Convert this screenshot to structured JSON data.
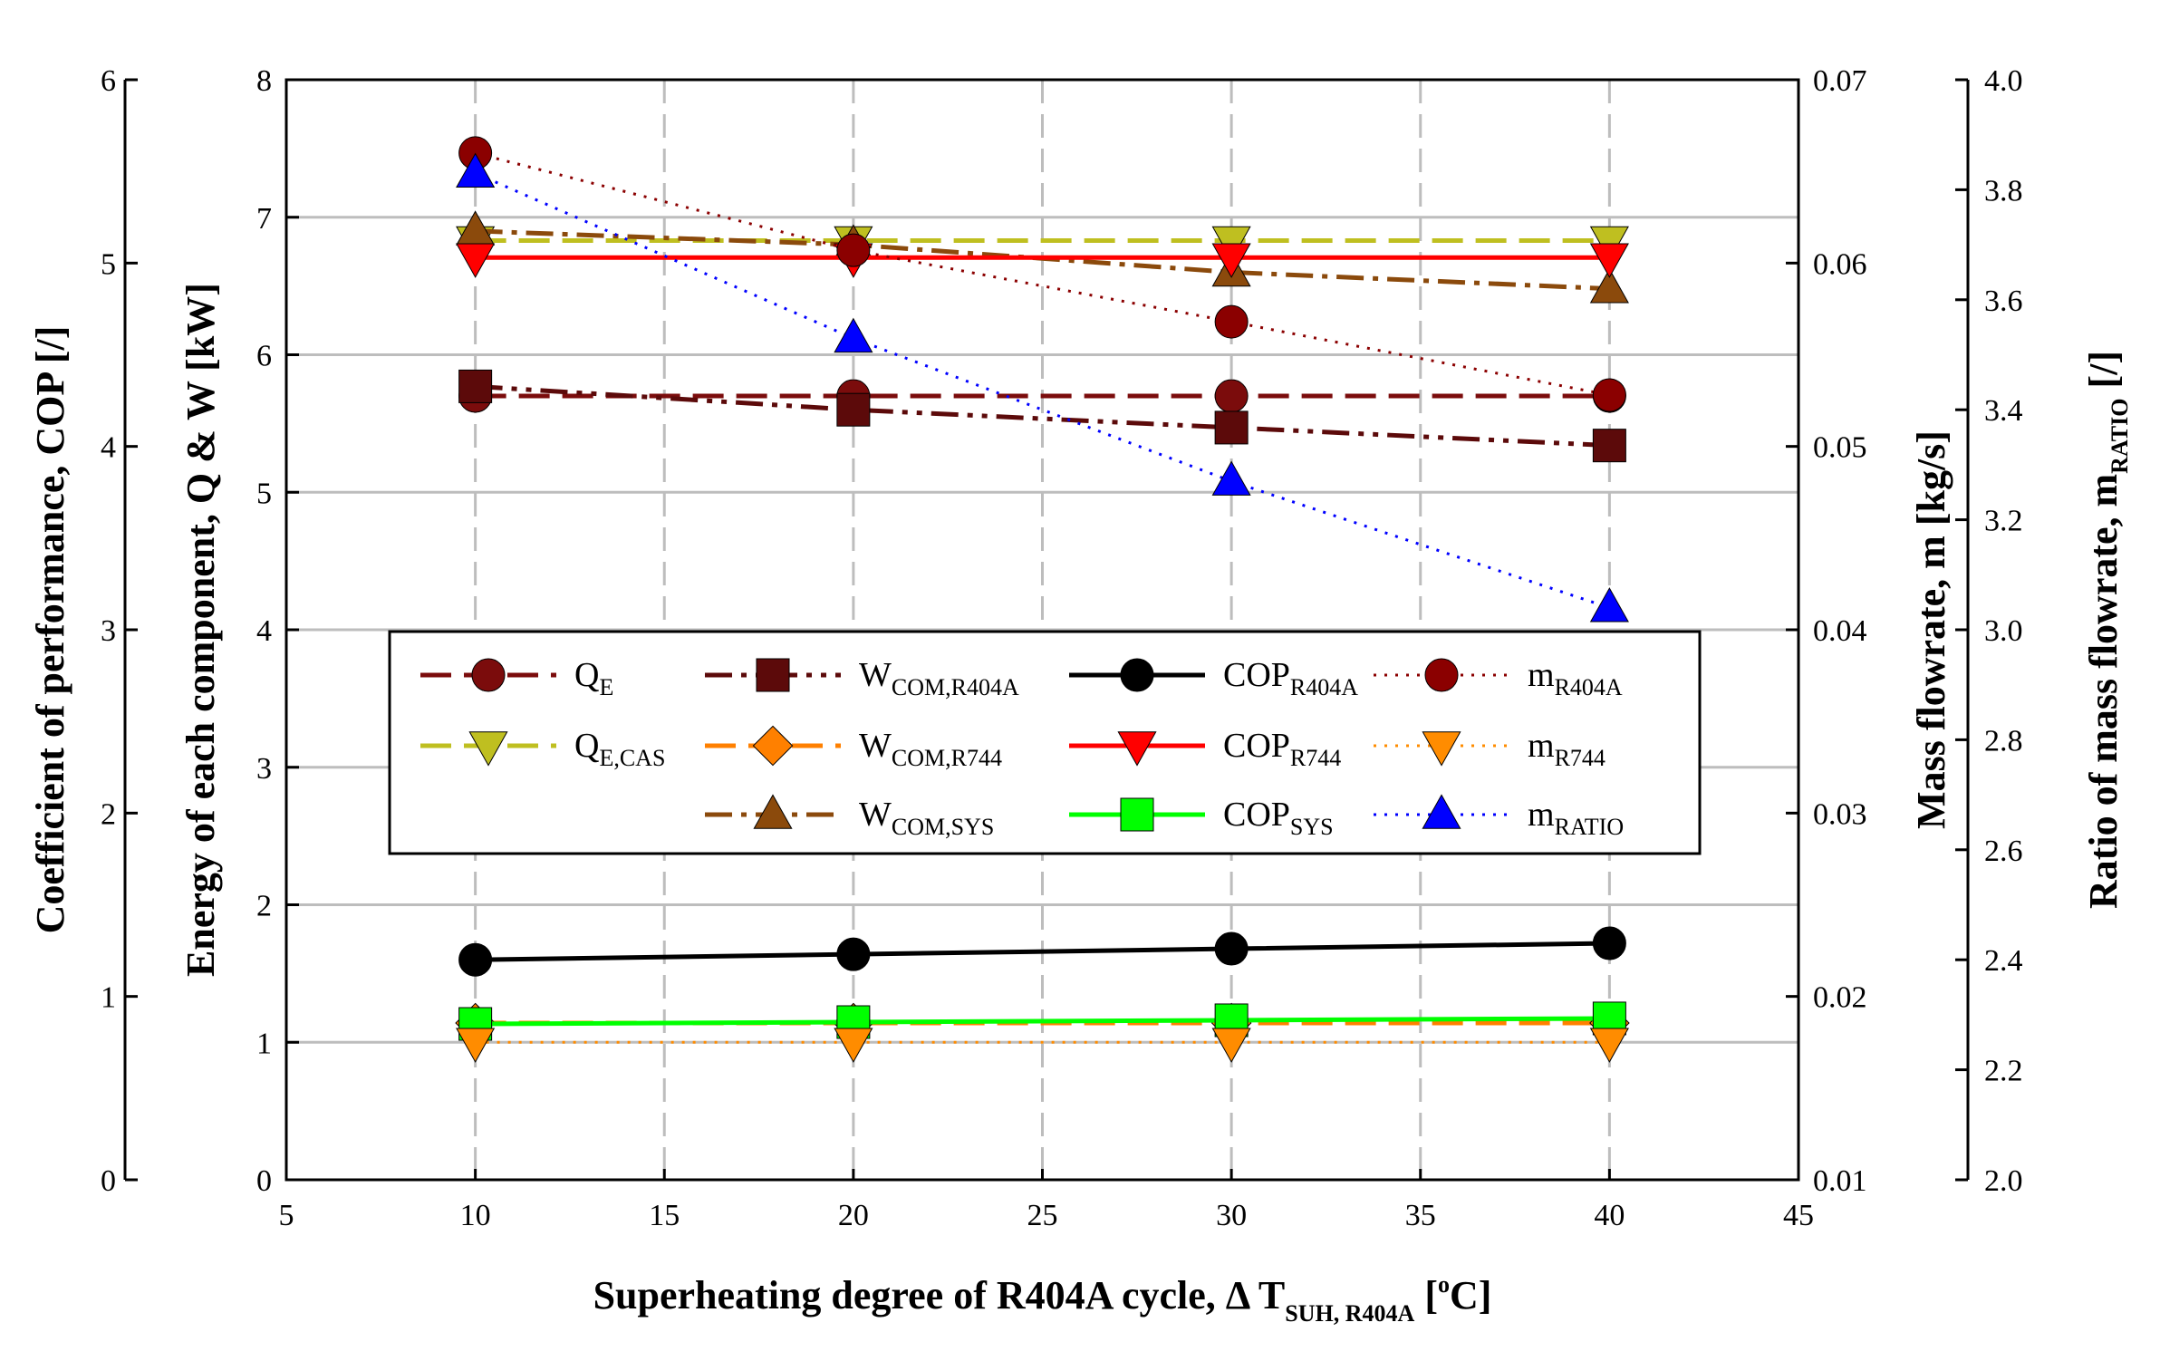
{
  "chart_data": {
    "type": "line",
    "x": [
      10,
      20,
      30,
      40
    ],
    "xlim": [
      5,
      45
    ],
    "xticks": [
      5,
      10,
      15,
      20,
      25,
      30,
      35,
      40,
      45
    ],
    "xlabel": {
      "main": "Superheating degree of R404A cycle, Δ  T",
      "sub": "SUH, R404A",
      "tail_pre": " [",
      "sup": "o",
      "tail_post": "C]"
    },
    "axes": [
      {
        "key": "cop",
        "label": "Coefficient of performance, COP [/]",
        "range": [
          0,
          6
        ],
        "ticks": [
          "0",
          "1",
          "2",
          "3",
          "4",
          "5",
          "6"
        ]
      },
      {
        "key": "energy",
        "label": "Energy of each component, Q & W [kW]",
        "range": [
          0,
          8
        ],
        "ticks": [
          "0",
          "1",
          "2",
          "3",
          "4",
          "5",
          "6",
          "7",
          "8"
        ]
      },
      {
        "key": "mass",
        "label": "Mass flowrate, m [kg/s]",
        "range": [
          0.01,
          0.07
        ],
        "ticks": [
          "0.01",
          "0.02",
          "0.03",
          "0.04",
          "0.05",
          "0.06",
          "0.07"
        ]
      },
      {
        "key": "ratio",
        "label_main": "Ratio of mass flowrate, m",
        "label_sub": "RATIO",
        "label_tail": " [/]",
        "range": [
          2.0,
          4.0
        ],
        "ticks": [
          "2.0",
          "2.2",
          "2.4",
          "2.6",
          "2.8",
          "3.0",
          "3.2",
          "3.4",
          "3.6",
          "3.8",
          "4.0"
        ]
      }
    ],
    "series": [
      {
        "name": "Q_E",
        "label_main": "Q",
        "label_sub": "E",
        "axis": "energy",
        "values": [
          5.7,
          5.7,
          5.7,
          5.7
        ],
        "color": "#7B0C0C",
        "marker": "circle",
        "dash": "longdash"
      },
      {
        "name": "Q_E,CAS",
        "label_main": "Q",
        "label_sub": "E,CAS",
        "axis": "energy",
        "values": [
          6.83,
          6.83,
          6.83,
          6.83
        ],
        "color": "#BFBF20",
        "marker": "tri-down",
        "dash": "longdash"
      },
      {
        "name": "W_COM,R404A",
        "label_main": "W",
        "label_sub": "COM,R404A",
        "axis": "energy",
        "values": [
          5.77,
          5.6,
          5.47,
          5.34
        ],
        "color": "#5C0A0A",
        "marker": "square",
        "dash": "dashdotdot"
      },
      {
        "name": "W_COM,R744",
        "label_main": "W",
        "label_sub": "COM,R744",
        "axis": "energy",
        "values": [
          1.14,
          1.14,
          1.14,
          1.14
        ],
        "color": "#FF8000",
        "marker": "diamond",
        "dash": "longdash"
      },
      {
        "name": "W_COM,SYS",
        "label_main": "W",
        "label_sub": "COM,SYS",
        "axis": "energy",
        "values": [
          6.9,
          6.8,
          6.6,
          6.48
        ],
        "color": "#8B4A0C",
        "marker": "tri-up",
        "dash": "dashdot"
      },
      {
        "name": "COP_R404A",
        "label_main": "COP",
        "label_sub": "R404A",
        "axis": "cop",
        "values": [
          1.2,
          1.23,
          1.26,
          1.29
        ],
        "color": "#000000",
        "marker": "circle",
        "dash": "solid"
      },
      {
        "name": "COP_R744",
        "label_main": "COP",
        "label_sub": "R744",
        "axis": "cop",
        "values": [
          5.03,
          5.03,
          5.03,
          5.03
        ],
        "color": "#FF0000",
        "marker": "tri-down",
        "dash": "solid"
      },
      {
        "name": "COP_SYS",
        "label_main": "COP",
        "label_sub": "SYS",
        "axis": "cop",
        "values": [
          0.85,
          0.86,
          0.87,
          0.88
        ],
        "color": "#00FF00",
        "marker": "square",
        "dash": "solid"
      },
      {
        "name": "m_R404A",
        "label_main": "m",
        "label_sub": "R404A",
        "axis": "mass",
        "values": [
          0.066,
          0.0607,
          0.0568,
          0.0528
        ],
        "color": "#8B0000",
        "marker": "circle",
        "dash": "dot"
      },
      {
        "name": "m_R744",
        "label_main": "m",
        "label_sub": "R744",
        "axis": "mass",
        "values": [
          0.0175,
          0.0175,
          0.0175,
          0.0175
        ],
        "color": "#FF8C00",
        "marker": "tri-down",
        "dash": "dot"
      },
      {
        "name": "m_RATIO",
        "label_main": "m",
        "label_sub": "RATIO",
        "axis": "ratio",
        "values": [
          3.83,
          3.53,
          3.27,
          3.04
        ],
        "color": "#0000FF",
        "marker": "tri-up",
        "dash": "dot"
      }
    ],
    "legend": {
      "placement": "center-left",
      "columns": 4,
      "rows": 3,
      "order": [
        [
          "Q_E",
          "Q_E,CAS"
        ],
        [
          "W_COM,R404A",
          "W_COM,R744",
          "W_COM,SYS"
        ],
        [
          "COP_R404A",
          "COP_R744",
          "COP_SYS"
        ],
        [
          "m_R404A",
          "m_R744",
          "m_RATIO"
        ]
      ]
    },
    "grid": true
  }
}
